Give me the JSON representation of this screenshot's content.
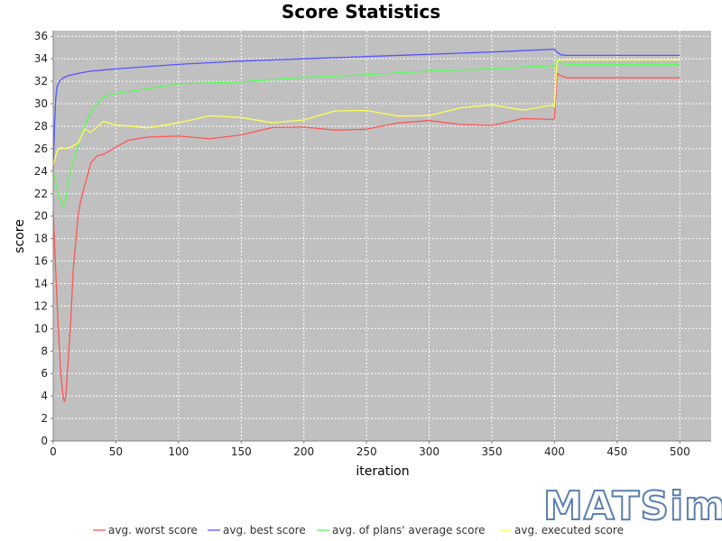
{
  "chart_data": {
    "type": "line",
    "title": "Score Statistics",
    "xlabel": "iteration",
    "ylabel": "score",
    "xlim": [
      0,
      525
    ],
    "ylim": [
      0,
      36.5
    ],
    "x_ticks": [
      0,
      50,
      100,
      150,
      200,
      250,
      300,
      350,
      400,
      450,
      500
    ],
    "y_ticks": [
      0,
      2,
      4,
      6,
      8,
      10,
      12,
      14,
      16,
      18,
      20,
      22,
      24,
      26,
      28,
      30,
      32,
      34,
      36
    ],
    "grid": true,
    "legend_position": "bottom",
    "background_color": "#c0c0c0",
    "series": [
      {
        "name": "avg. worst score",
        "color": "#ff5555",
        "x": [
          0,
          2,
          4,
          6,
          8,
          9,
          10,
          12,
          14,
          16,
          18,
          20,
          22,
          25,
          30,
          35,
          40,
          50,
          60,
          75,
          100,
          125,
          150,
          175,
          200,
          225,
          250,
          275,
          300,
          325,
          350,
          375,
          399,
          400,
          402,
          405,
          410,
          450,
          500
        ],
        "y": [
          20.3,
          15,
          10,
          6,
          3.8,
          3.5,
          4,
          7,
          11,
          15,
          18,
          20,
          21.5,
          23,
          24.5,
          25.3,
          25.8,
          26.2,
          26.4,
          26.7,
          27,
          27.2,
          27.4,
          27.6,
          27.7,
          27.9,
          28,
          28.1,
          28.2,
          28.3,
          28.4,
          28.6,
          28.7,
          28.7,
          32.7,
          32.5,
          32.3,
          32.3,
          32.3
        ]
      },
      {
        "name": "avg. best score",
        "color": "#5555ff",
        "x": [
          0,
          1,
          2,
          3,
          5,
          8,
          12,
          20,
          30,
          50,
          75,
          100,
          150,
          200,
          250,
          300,
          350,
          380,
          399,
          400,
          402,
          405,
          410,
          450,
          500
        ],
        "y": [
          24,
          28,
          30.5,
          31.5,
          32,
          32.3,
          32.5,
          32.7,
          32.9,
          33.1,
          33.3,
          33.5,
          33.8,
          34,
          34.2,
          34.4,
          34.6,
          34.75,
          34.85,
          34.85,
          34.6,
          34.35,
          34.3,
          34.3,
          34.3
        ]
      },
      {
        "name": "avg. of plans' average score",
        "color": "#55ff55",
        "x": [
          0,
          2,
          4,
          6,
          8,
          10,
          12,
          15,
          20,
          25,
          30,
          40,
          50,
          75,
          100,
          150,
          200,
          250,
          300,
          350,
          399,
          400,
          402,
          405,
          410,
          450,
          500
        ],
        "y": [
          24,
          23,
          22,
          21.2,
          20.9,
          21.5,
          23,
          24.5,
          26.5,
          28,
          29.2,
          30.5,
          31,
          31.4,
          31.7,
          32,
          32.3,
          32.6,
          32.9,
          33.1,
          33.3,
          33.3,
          33.9,
          33.6,
          33.5,
          33.5,
          33.5
        ]
      },
      {
        "name": "avg. executed score",
        "color": "#ffff55",
        "x": [
          0,
          3,
          6,
          10,
          15,
          20,
          25,
          30,
          40,
          50,
          75,
          100,
          125,
          150,
          175,
          200,
          225,
          250,
          275,
          300,
          325,
          350,
          375,
          399,
          400,
          402,
          405,
          410,
          450,
          500
        ],
        "y": [
          24.5,
          25.8,
          26.1,
          26,
          26.3,
          26.8,
          27.3,
          27.7,
          28,
          28.1,
          28.3,
          28.4,
          28.5,
          28.6,
          28.7,
          28.8,
          29,
          29.1,
          29.2,
          29.3,
          29.4,
          29.5,
          29.6,
          29.7,
          29.7,
          33.8,
          33.9,
          33.9,
          33.9,
          33.9
        ]
      }
    ]
  },
  "logo": {
    "text": "MATSim"
  }
}
